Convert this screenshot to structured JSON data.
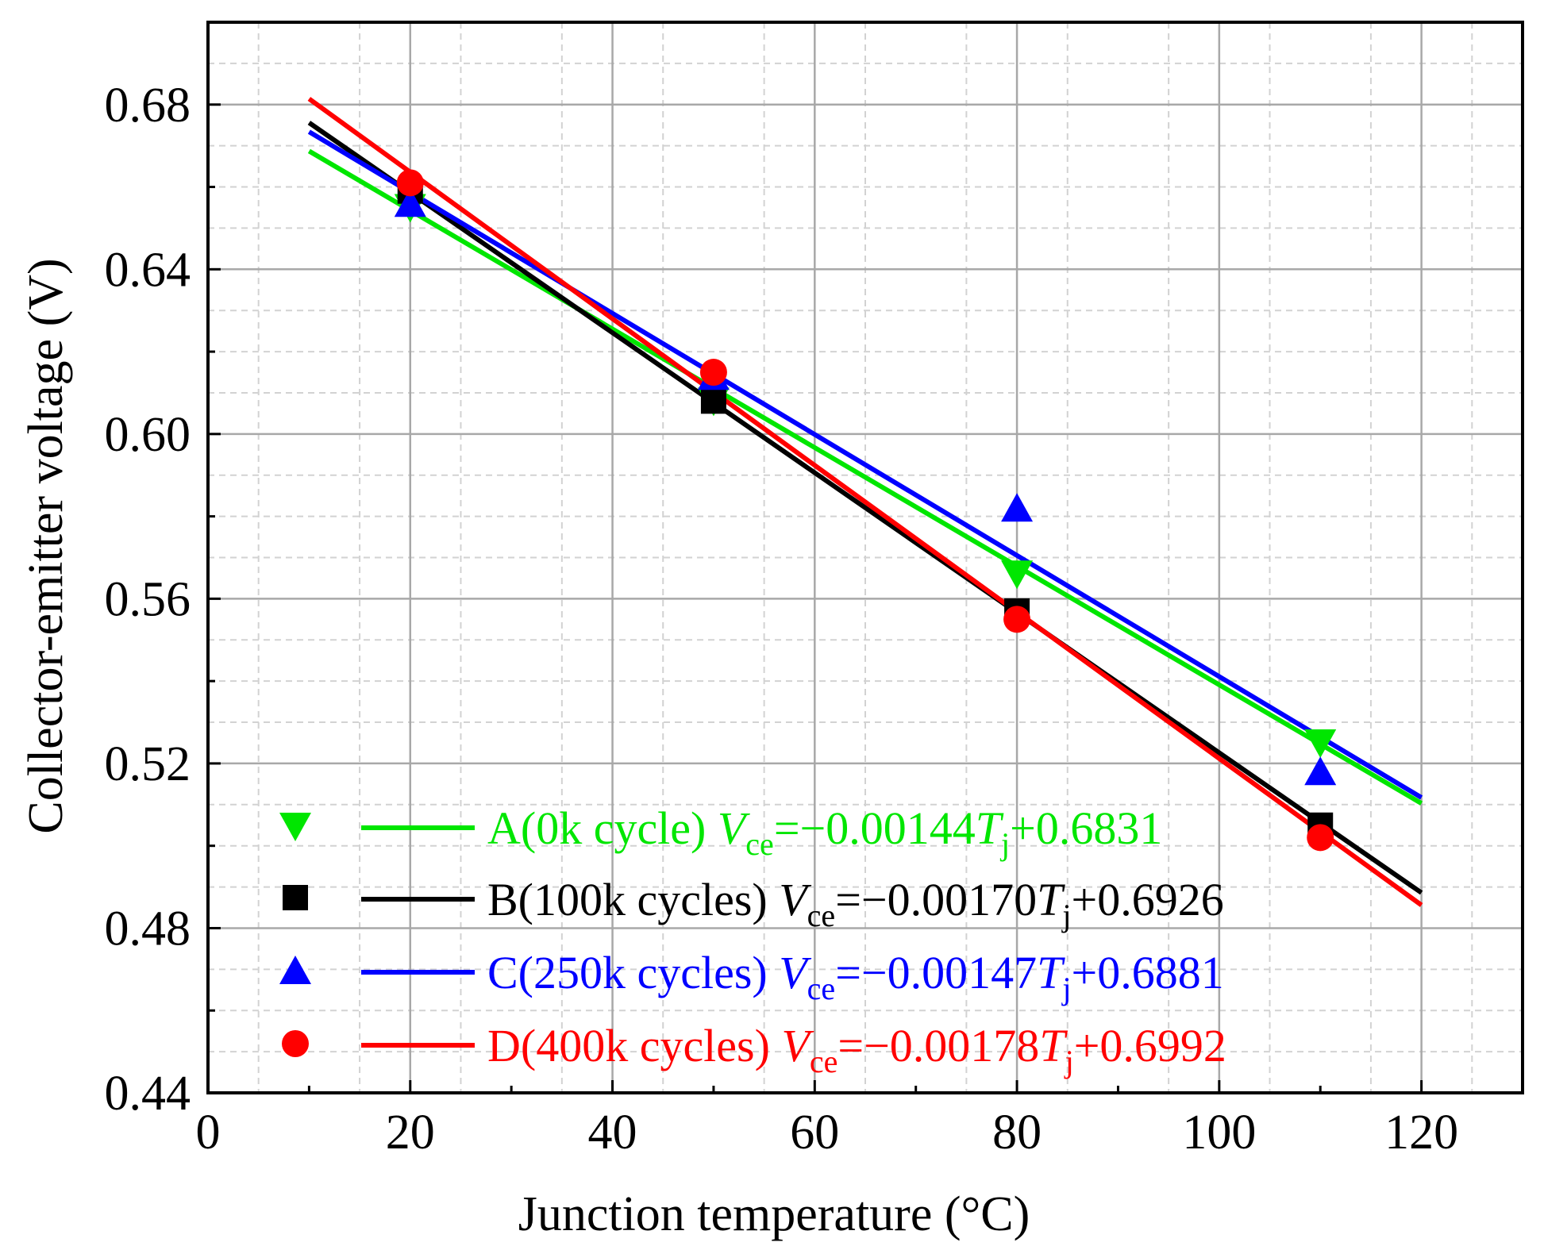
{
  "chart_data": {
    "type": "scatter",
    "title": "",
    "xlabel": "Junction temperature (°C)",
    "ylabel": "Collector-emitter voltage (V)",
    "xlim": [
      0,
      130
    ],
    "ylim": [
      0.44,
      0.7
    ],
    "x_ticks": [
      0,
      20,
      40,
      60,
      80,
      100,
      120
    ],
    "y_ticks": [
      0.44,
      0.48,
      0.52,
      0.56,
      0.6,
      0.64,
      0.68
    ],
    "x_tick_labels": [
      "0",
      "20",
      "40",
      "60",
      "80",
      "100",
      "120"
    ],
    "y_tick_labels": [
      "0.44",
      "0.48",
      "0.52",
      "0.56",
      "0.60",
      "0.64",
      "0.68"
    ],
    "grid": true,
    "legend_position": "bottom-left",
    "series": [
      {
        "name": "A(0k cycle)",
        "color": "#00e600",
        "marker": "triangle-down",
        "x": [
          20,
          50,
          80,
          110
        ],
        "y": [
          0.655,
          0.608,
          0.566,
          0.525
        ],
        "fit": {
          "slope": -0.00144,
          "intercept": 0.6831,
          "x_range": [
            10,
            120
          ]
        },
        "equation": {
          "prefix": "V",
          "prefix_sub": "ce",
          "mid": "=−0.00144",
          "var": "T",
          "var_sub": "j",
          "suffix": "+0.6831"
        }
      },
      {
        "name": "B(100k cycles)",
        "color": "#000000",
        "marker": "square",
        "x": [
          20,
          50,
          80,
          110
        ],
        "y": [
          0.659,
          0.608,
          0.557,
          0.505
        ],
        "fit": {
          "slope": -0.0017,
          "intercept": 0.6926,
          "x_range": [
            10,
            120
          ]
        },
        "equation": {
          "prefix": "V",
          "prefix_sub": "ce",
          "mid": "=−0.00170",
          "var": "T",
          "var_sub": "j",
          "suffix": "+0.6926"
        }
      },
      {
        "name": "C(250k cycles)",
        "color": "#0000ff",
        "marker": "triangle-up",
        "x": [
          20,
          50,
          80,
          110
        ],
        "y": [
          0.656,
          0.614,
          0.582,
          0.518
        ],
        "fit": {
          "slope": -0.00147,
          "intercept": 0.6881,
          "x_range": [
            10,
            120
          ]
        },
        "equation": {
          "prefix": "V",
          "prefix_sub": "ce",
          "mid": "=−0.00147",
          "var": "T",
          "var_sub": "j",
          "suffix": "+0.6881"
        }
      },
      {
        "name": "D(400k cycles)",
        "color": "#ff0000",
        "marker": "circle",
        "x": [
          20,
          50,
          80,
          110
        ],
        "y": [
          0.661,
          0.615,
          0.555,
          0.502
        ],
        "fit": {
          "slope": -0.00178,
          "intercept": 0.6992,
          "x_range": [
            10,
            120
          ]
        },
        "equation": {
          "prefix": "V",
          "prefix_sub": "ce",
          "mid": "=−0.00178",
          "var": "T",
          "var_sub": "j",
          "suffix": "+0.6992"
        }
      }
    ]
  }
}
